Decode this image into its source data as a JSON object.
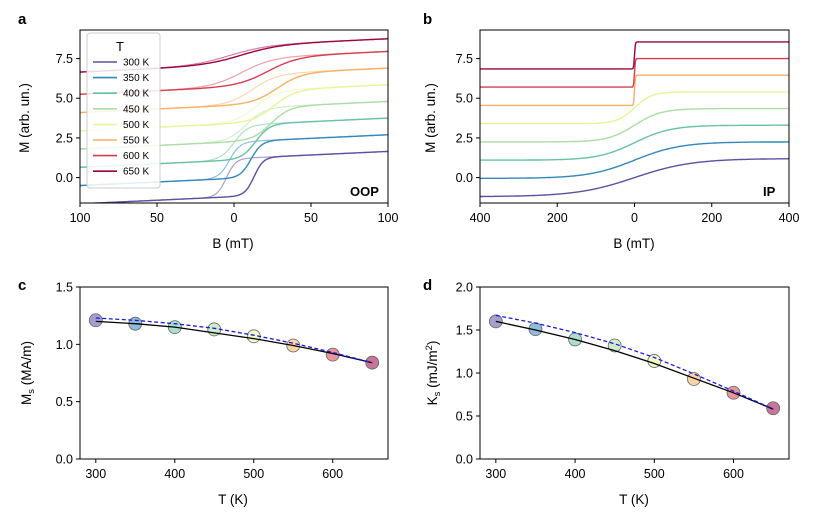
{
  "chart_data": [
    {
      "id": "a",
      "type": "line",
      "panel_letter": "a",
      "corner_tag": "OOP",
      "xlabel": "B (mT)",
      "ylabel": "M (arb. un.)",
      "xlim": [
        -100,
        100
      ],
      "ylim": [
        -1.6,
        9.3
      ],
      "x_ticks": [
        -100,
        -50,
        0,
        50,
        100
      ],
      "x_tick_labels": [
        "100",
        "50",
        "0",
        "50",
        "100"
      ],
      "y_ticks": [
        0,
        2.5,
        5,
        7.5
      ],
      "y_tick_labels": [
        "0.0",
        "2.5",
        "5.0",
        "7.5"
      ],
      "legend": {
        "title": "T",
        "location": "upper-left",
        "entries": [
          "300 K",
          "350 K",
          "400 K",
          "450 K",
          "500 K",
          "550 K",
          "600 K",
          "650 K"
        ]
      },
      "series": [
        {
          "name": "300 K",
          "offset": 0,
          "low": -1.2,
          "high": 1.2,
          "switch_up": 13,
          "switch_down": -5,
          "width": 6
        },
        {
          "name": "350 K",
          "offset": 1.1,
          "low": -1.15,
          "high": 1.15,
          "switch_up": 11,
          "switch_down": -3,
          "width": 7
        },
        {
          "name": "400 K",
          "offset": 2.2,
          "low": -1.1,
          "high": 1.1,
          "switch_up": 14,
          "switch_down": 0,
          "width": 9
        },
        {
          "name": "450 K",
          "offset": 3.3,
          "low": -1.05,
          "high": 1.05,
          "switch_up": 24,
          "switch_down": 8,
          "width": 12
        },
        {
          "name": "500 K",
          "offset": 4.4,
          "low": -1.0,
          "high": 1.0,
          "switch_up": 26,
          "switch_down": 14,
          "width": 14
        },
        {
          "name": "550 K",
          "offset": 5.5,
          "low": -0.95,
          "high": 0.95,
          "switch_up": 28,
          "switch_down": 12,
          "width": 16
        },
        {
          "name": "600 K",
          "offset": 6.6,
          "low": -0.9,
          "high": 0.9,
          "switch_up": 22,
          "switch_down": 5,
          "width": 20
        },
        {
          "name": "650 K",
          "offset": 7.7,
          "low": -0.6,
          "high": 0.6,
          "switch_up": 5,
          "switch_down": -3,
          "width": 25
        }
      ]
    },
    {
      "id": "b",
      "type": "line",
      "panel_letter": "b",
      "corner_tag": "IP",
      "xlabel": "B (mT)",
      "ylabel": "M (arb. un.)",
      "xlim": [
        -400,
        400
      ],
      "ylim": [
        -1.6,
        9.3
      ],
      "x_ticks": [
        -400,
        -200,
        0,
        200,
        400
      ],
      "x_tick_labels": [
        "400",
        "200",
        "0",
        "200",
        "400"
      ],
      "y_ticks": [
        0,
        2.5,
        5,
        7.5
      ],
      "y_tick_labels": [
        "0.0",
        "2.5",
        "5.0",
        "7.5"
      ],
      "series": [
        {
          "name": "300 K",
          "offset": 0,
          "low": -1.2,
          "high": 1.2,
          "width": 150
        },
        {
          "name": "350 K",
          "offset": 1.1,
          "low": -1.15,
          "high": 1.15,
          "width": 120
        },
        {
          "name": "400 K",
          "offset": 2.2,
          "low": -1.1,
          "high": 1.1,
          "width": 95
        },
        {
          "name": "450 K",
          "offset": 3.3,
          "low": -1.05,
          "high": 1.05,
          "width": 70
        },
        {
          "name": "500 K",
          "offset": 4.4,
          "low": -1.0,
          "high": 1.0,
          "width": 45
        },
        {
          "name": "550 K",
          "offset": 5.5,
          "low": -0.95,
          "high": 0.95,
          "width": 2
        },
        {
          "name": "600 K",
          "offset": 6.6,
          "low": -0.9,
          "high": 0.9,
          "width": 2
        },
        {
          "name": "650 K",
          "offset": 7.7,
          "low": -0.85,
          "high": 0.85,
          "width": 2
        }
      ]
    },
    {
      "id": "c",
      "type": "scatter",
      "panel_letter": "c",
      "xlabel": "T (K)",
      "ylabel_main": "M",
      "ylabel_sub": "s",
      "ylabel_unit": " (MA/m)",
      "xlim": [
        280,
        670
      ],
      "ylim": [
        0,
        1.5
      ],
      "x_ticks": [
        300,
        400,
        500,
        600
      ],
      "x_tick_labels": [
        "300",
        "400",
        "500",
        "600"
      ],
      "y_ticks": [
        0,
        0.5,
        1.0,
        1.5
      ],
      "y_tick_labels": [
        "0.0",
        "0.5",
        "1.0",
        "1.5"
      ],
      "x": [
        300,
        350,
        400,
        450,
        500,
        550,
        600,
        650
      ],
      "values": [
        1.21,
        1.18,
        1.15,
        1.13,
        1.07,
        0.99,
        0.91,
        0.84
      ],
      "fit_solid": [
        1.2,
        1.18,
        1.15,
        1.1,
        1.05,
        0.99,
        0.92,
        0.84
      ],
      "fit_dashed": [
        1.23,
        1.21,
        1.18,
        1.14,
        1.08,
        1.01,
        0.93,
        0.84
      ]
    },
    {
      "id": "d",
      "type": "scatter",
      "panel_letter": "d",
      "xlabel": "T (K)",
      "ylabel_main": "K",
      "ylabel_sub": "s",
      "ylabel_unit": " (mJ/m",
      "ylabel_sup": "2",
      "ylabel_close": ")",
      "xlim": [
        280,
        670
      ],
      "ylim": [
        0,
        2.0
      ],
      "x_ticks": [
        300,
        400,
        500,
        600
      ],
      "x_tick_labels": [
        "300",
        "400",
        "500",
        "600"
      ],
      "y_ticks": [
        0,
        0.5,
        1.0,
        1.5,
        2.0
      ],
      "y_tick_labels": [
        "0.0",
        "0.5",
        "1.0",
        "1.5",
        "2.0"
      ],
      "x": [
        300,
        350,
        400,
        450,
        500,
        550,
        600,
        650
      ],
      "values": [
        1.6,
        1.51,
        1.39,
        1.32,
        1.14,
        0.93,
        0.77,
        0.59
      ],
      "fit_solid": [
        1.6,
        1.5,
        1.39,
        1.26,
        1.11,
        0.94,
        0.77,
        0.58
      ],
      "fit_dashed": [
        1.67,
        1.58,
        1.47,
        1.34,
        1.18,
        0.99,
        0.79,
        0.58
      ]
    }
  ],
  "colors": {
    "series": [
      "#5e4fa2",
      "#3288bd",
      "#66c2a5",
      "#abdda4",
      "#e6f598",
      "#fdae61",
      "#d53e4f",
      "#9e0142"
    ],
    "series_light": [
      "#a9a0d0",
      "#8fc0e0",
      "#aee0cf",
      "#d4eecf",
      "#f3fad0",
      "#fed7b0",
      "#eda0a8",
      "#cf80a0"
    ],
    "fit_solid": "#000000",
    "fit_dashed": "#1a1adc"
  }
}
